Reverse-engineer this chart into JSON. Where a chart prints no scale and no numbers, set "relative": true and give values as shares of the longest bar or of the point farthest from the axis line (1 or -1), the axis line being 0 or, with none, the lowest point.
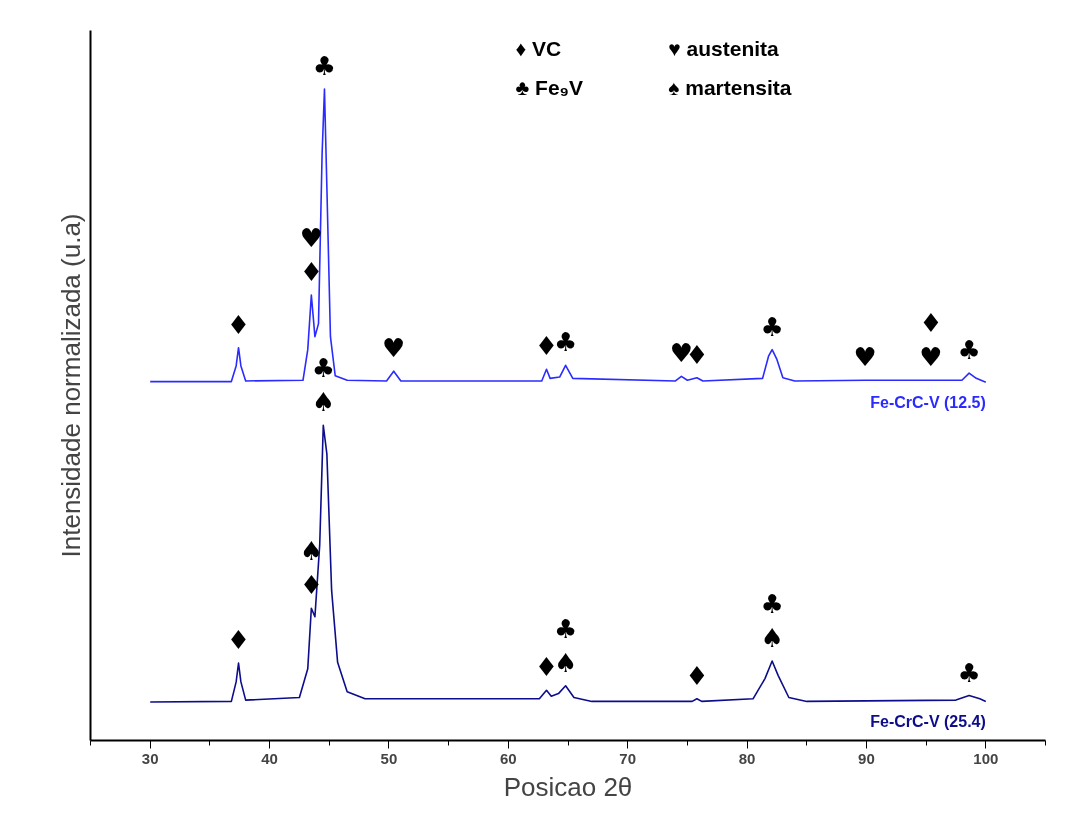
{
  "chart_data": {
    "type": "line",
    "relative": true,
    "xlabel": "Posicao 2θ",
    "ylabel": "Intensidade normalizada (u.a)",
    "xlim": [
      25,
      105
    ],
    "xticks": [
      {
        "value": 25,
        "label": null
      },
      30,
      {
        "value": 35,
        "label": null
      },
      40,
      {
        "value": 45,
        "label": null
      },
      50,
      {
        "value": 55,
        "label": null
      },
      60,
      {
        "value": 65,
        "label": null
      },
      70,
      {
        "value": 75,
        "label": null
      },
      80,
      {
        "value": 85,
        "label": null
      },
      90,
      {
        "value": 95,
        "label": null
      },
      100,
      {
        "value": 105,
        "label": null
      }
    ],
    "series": [
      {
        "name": "Fe-CrC-V (12.5)",
        "color": "#2b2bff",
        "x": [
          30,
          36.8,
          37.2,
          37.4,
          37.6,
          38,
          42.8,
          43.2,
          43.5,
          43.8,
          44.1,
          44.4,
          44.6,
          44.8,
          45.1,
          45.5,
          46.5,
          49.8,
          50.4,
          51,
          62.8,
          63.2,
          63.5,
          64.3,
          64.8,
          65.4,
          74,
          74.5,
          75,
          75.8,
          76.3,
          81.3,
          81.8,
          82.1,
          82.5,
          83,
          84,
          89.9,
          95.4,
          98,
          98.6,
          99.2,
          100
        ],
        "values": [
          0.551,
          0.551,
          0.575,
          0.603,
          0.575,
          0.552,
          0.553,
          0.6,
          0.684,
          0.62,
          0.64,
          0.9,
          1.0,
          0.85,
          0.62,
          0.56,
          0.553,
          0.552,
          0.567,
          0.552,
          0.552,
          0.57,
          0.556,
          0.558,
          0.576,
          0.556,
          0.552,
          0.559,
          0.553,
          0.557,
          0.552,
          0.556,
          0.59,
          0.6,
          0.585,
          0.557,
          0.552,
          0.553,
          0.553,
          0.553,
          0.564,
          0.556,
          0.55
        ]
      },
      {
        "name": "Fe-CrC-V (25.4)",
        "color": "#0d0d8c",
        "x": [
          30,
          36.8,
          37.2,
          37.4,
          37.6,
          38,
          42.5,
          43.2,
          43.5,
          43.8,
          44.2,
          44.5,
          44.8,
          45.2,
          45.7,
          46.5,
          48,
          62.6,
          63.2,
          63.6,
          64.2,
          64.8,
          65.5,
          67,
          75.4,
          75.8,
          76.2,
          80.5,
          81.5,
          82.1,
          82.6,
          83.5,
          85,
          97.5,
          98.6,
          99.5,
          100
        ],
        "values": [
          0.059,
          0.06,
          0.09,
          0.119,
          0.09,
          0.062,
          0.066,
          0.11,
          0.203,
          0.19,
          0.3,
          0.484,
          0.44,
          0.23,
          0.12,
          0.075,
          0.064,
          0.064,
          0.077,
          0.068,
          0.072,
          0.084,
          0.066,
          0.06,
          0.06,
          0.064,
          0.06,
          0.064,
          0.095,
          0.122,
          0.1,
          0.066,
          0.06,
          0.062,
          0.069,
          0.064,
          0.06
        ]
      }
    ],
    "annotations": [
      {
        "text": "♦",
        "x": 37.4,
        "y": 0.603
      },
      {
        "text": "♦",
        "x": 43.5,
        "y": 0.684
      },
      {
        "text": "♥",
        "x": 43.5,
        "y": 0.684
      },
      {
        "text": "♣",
        "x": 44.6,
        "y": 1.0
      },
      {
        "text": "♥",
        "x": 50.4,
        "y": 0.567
      },
      {
        "text": "♦",
        "x": 63.2,
        "y": 0.57
      },
      {
        "text": "♣",
        "x": 64.8,
        "y": 0.576
      },
      {
        "text": "♥",
        "x": 74.5,
        "y": 0.559
      },
      {
        "text": "♦",
        "x": 75.8,
        "y": 0.557
      },
      {
        "text": "♣",
        "x": 82.1,
        "y": 0.6
      },
      {
        "text": "♥",
        "x": 89.9,
        "y": 0.553
      },
      {
        "text": "♥",
        "x": 95.4,
        "y": 0.553
      },
      {
        "text": "♦",
        "x": 95.4,
        "y": 0.553
      },
      {
        "text": "♣",
        "x": 98.6,
        "y": 0.564
      },
      {
        "text": "♦",
        "x": 37.4,
        "y": 0.119
      },
      {
        "text": "♦",
        "x": 43.5,
        "y": 0.203
      },
      {
        "text": "♠",
        "x": 43.5,
        "y": 0.203
      },
      {
        "text": "♠",
        "x": 44.5,
        "y": 0.484
      },
      {
        "text": "♣",
        "x": 44.5,
        "y": 0.484
      },
      {
        "text": "♦",
        "x": 63.2,
        "y": 0.077
      },
      {
        "text": "♠",
        "x": 64.8,
        "y": 0.084
      },
      {
        "text": "♣",
        "x": 64.8,
        "y": 0.084
      },
      {
        "text": "♦",
        "x": 75.8,
        "y": 0.064
      },
      {
        "text": "♠",
        "x": 82.1,
        "y": 0.122
      },
      {
        "text": "♣",
        "x": 82.1,
        "y": 0.122
      },
      {
        "text": "♣",
        "x": 98.6,
        "y": 0.069
      },
      "♦ VC",
      "♣ Fe₉V",
      "♥ austenita",
      "♠ martensita"
    ]
  }
}
